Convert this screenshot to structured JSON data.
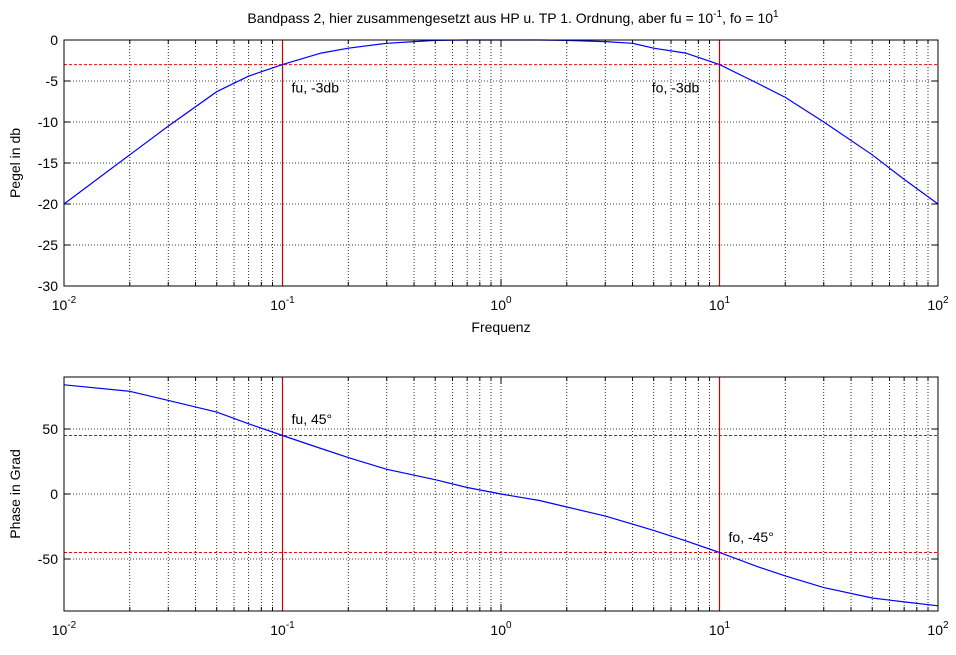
{
  "chart_data": [
    {
      "type": "line",
      "title_text": "Bandpass 2, hier zusammengesetzt aus HP u. TP 1. Ordnung, aber fu = 10",
      "title_exp1": "-1",
      "title_mid": ", fo = 10",
      "title_exp2": "1",
      "xlabel": "Frequenz",
      "ylabel": "Pegel in db",
      "xscale": "log",
      "xlim": [
        0.01,
        100
      ],
      "ylim": [
        -30,
        0
      ],
      "yticks": [
        0,
        -5,
        -10,
        -15,
        -20,
        -25,
        -30
      ],
      "xtick_labels": [
        "10",
        "10",
        "10",
        "10",
        "10"
      ],
      "xtick_exps": [
        "-2",
        "-1",
        "0",
        "1",
        "2"
      ],
      "grid": true,
      "series": [
        {
          "color": "#0000ff",
          "x": [
            0.01,
            0.02,
            0.03,
            0.05,
            0.07,
            0.1,
            0.15,
            0.2,
            0.3,
            0.4,
            0.5,
            0.7,
            1,
            1.5,
            2,
            3,
            4,
            5,
            7,
            10,
            15,
            20,
            30,
            50,
            70,
            100
          ],
          "y": [
            -20.0,
            -14.0,
            -10.5,
            -6.3,
            -4.4,
            -3.0,
            -1.6,
            -1.0,
            -0.4,
            -0.2,
            -0.05,
            0,
            0,
            0,
            -0.05,
            -0.2,
            -0.4,
            -1.0,
            -1.6,
            -3.0,
            -5.3,
            -7.0,
            -10.0,
            -14.0,
            -17.0,
            -20.0
          ]
        }
      ],
      "hlines": [
        {
          "y": -3,
          "color": "#ff0000"
        }
      ],
      "vlines": [
        {
          "x": 0.1,
          "color": "#cc0000"
        },
        {
          "x": 10,
          "color": "#cc0000"
        }
      ],
      "annotations": [
        {
          "text": "fu, -3db",
          "x": 0.11,
          "y": -6.4
        },
        {
          "text": "fo, -3db",
          "x": 4.9,
          "y": -6.4
        }
      ]
    },
    {
      "type": "line",
      "xlabel": "",
      "ylabel": "Phase in Grad",
      "xscale": "log",
      "xlim": [
        0.01,
        100
      ],
      "ylim": [
        -90,
        90
      ],
      "yticks": [
        50,
        0,
        -50
      ],
      "xtick_labels": [
        "10",
        "10",
        "10",
        "10",
        "10"
      ],
      "xtick_exps": [
        "-2",
        "-1",
        "0",
        "1",
        "2"
      ],
      "grid": true,
      "series": [
        {
          "color": "#0000ff",
          "x": [
            0.01,
            0.02,
            0.03,
            0.05,
            0.07,
            0.1,
            0.15,
            0.2,
            0.3,
            0.5,
            0.7,
            1,
            1.5,
            2,
            3,
            5,
            7,
            10,
            15,
            20,
            30,
            50,
            70,
            100
          ],
          "y": [
            84,
            79,
            72,
            63,
            54,
            45,
            35,
            28,
            19,
            11,
            5,
            0,
            -5,
            -10,
            -17,
            -28,
            -36,
            -45,
            -56,
            -63,
            -72,
            -80,
            -83,
            -86
          ]
        }
      ],
      "hlines": [
        {
          "y": 45,
          "color": "#ff0000"
        },
        {
          "y": -45,
          "color": "#ff0000"
        }
      ],
      "vlines": [
        {
          "x": 0.1,
          "color": "#cc0000"
        },
        {
          "x": 10,
          "color": "#cc0000"
        }
      ],
      "annotations": [
        {
          "text": "fu, 45°",
          "x": 0.11,
          "y": 54
        },
        {
          "text": "fo, -45°",
          "x": 11,
          "y": -37
        }
      ]
    }
  ]
}
